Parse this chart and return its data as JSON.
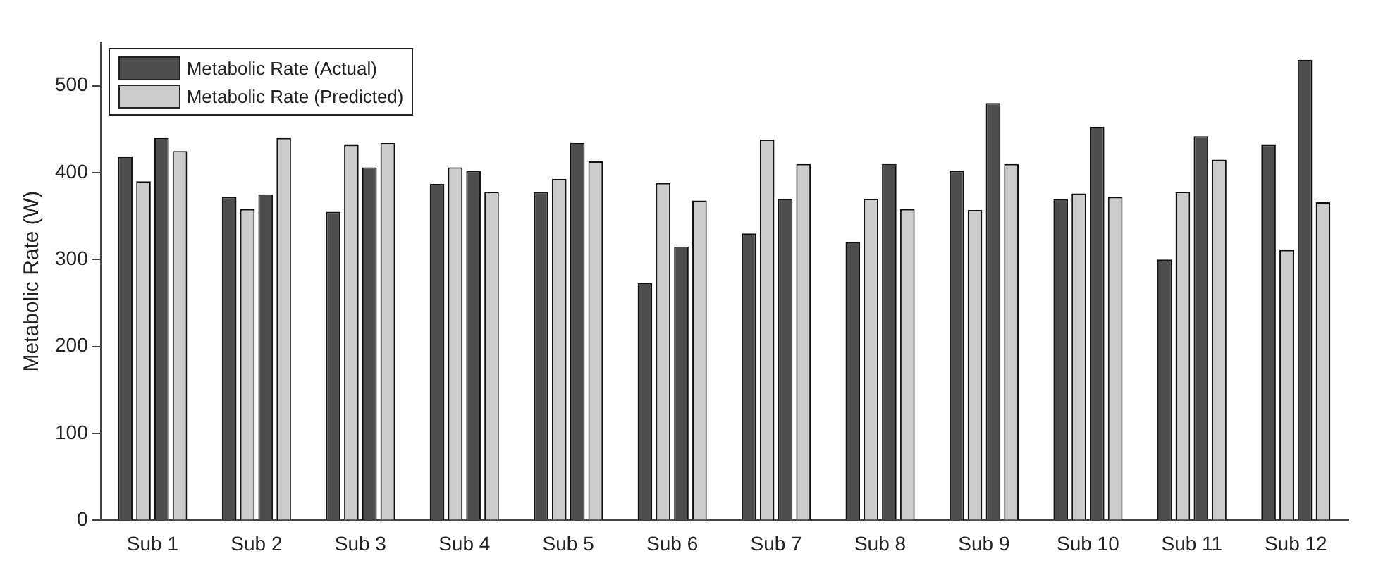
{
  "chart_data": {
    "type": "bar",
    "ylabel": "Metabolic Rate (W)",
    "categories": [
      "Sub 1",
      "Sub 2",
      "Sub 3",
      "Sub 4",
      "Sub 5",
      "Sub 6",
      "Sub 7",
      "Sub 8",
      "Sub 9",
      "Sub 10",
      "Sub 11",
      "Sub 12"
    ],
    "series": [
      {
        "name": "Metabolic Rate (Actual)",
        "color": "#4d4d4d",
        "values": [
          418,
          372,
          355,
          387,
          378,
          273,
          330,
          320,
          402,
          370,
          300,
          432
        ]
      },
      {
        "name": "Metabolic Rate (Predicted)",
        "color": "#cccccc",
        "values": [
          390,
          358,
          432,
          406,
          393,
          388,
          438,
          370,
          357,
          376,
          378,
          311
        ]
      },
      {
        "color": "#4d4d4d",
        "values": [
          440,
          375,
          406,
          402,
          434,
          315,
          370,
          410,
          480,
          453,
          442,
          530
        ]
      },
      {
        "color": "#cccccc",
        "values": [
          425,
          440,
          434,
          378,
          413,
          368,
          410,
          358,
          410,
          372,
          415,
          366
        ]
      }
    ],
    "ylim": [
      0,
      550
    ],
    "yticks": [
      0,
      100,
      200,
      300,
      400,
      500
    ],
    "grid": false,
    "legend": "top left"
  }
}
